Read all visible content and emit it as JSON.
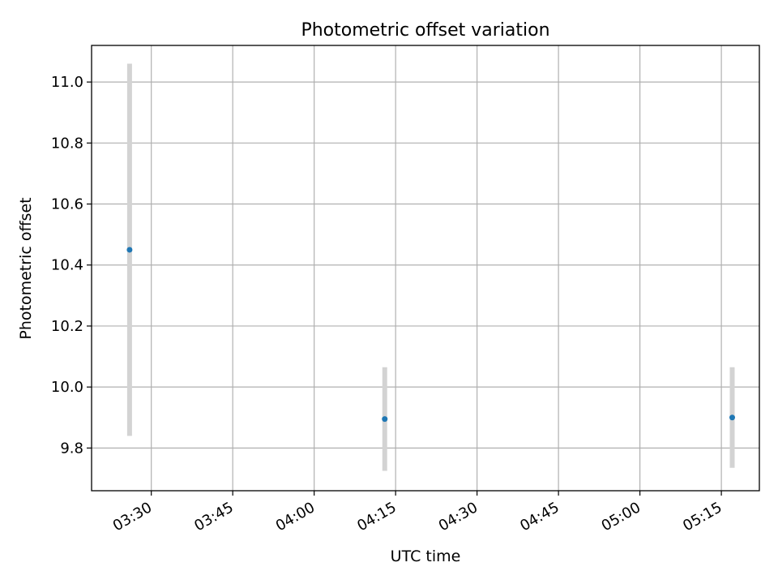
{
  "chart_data": {
    "type": "scatter",
    "title": "Photometric offset variation",
    "xlabel": "UTC time",
    "ylabel": "Photometric offset",
    "x_ticks": [
      "03:30",
      "03:45",
      "04:00",
      "04:15",
      "04:30",
      "04:45",
      "05:00",
      "05:15"
    ],
    "x_tick_minutes": [
      210,
      225,
      240,
      255,
      270,
      285,
      300,
      315
    ],
    "y_ticks": [
      "9.8",
      "10.0",
      "10.2",
      "10.4",
      "10.6",
      "10.8",
      "11.0"
    ],
    "y_tick_values": [
      9.8,
      10.0,
      10.2,
      10.4,
      10.6,
      10.8,
      11.0
    ],
    "xlim": [
      "03:19",
      "05:22"
    ],
    "ylim": [
      9.66,
      11.12
    ],
    "grid": true,
    "series": [
      {
        "points": [
          {
            "x": "03:26",
            "y": 10.45,
            "err": 0.61
          },
          {
            "x": "04:13",
            "y": 9.895,
            "err": 0.17
          },
          {
            "x": "05:17",
            "y": 9.9,
            "err": 0.165
          }
        ]
      }
    ],
    "colors": {
      "point": "#1f77b4",
      "errorbar": "#d3d3d3",
      "grid": "#b0b0b0"
    }
  }
}
